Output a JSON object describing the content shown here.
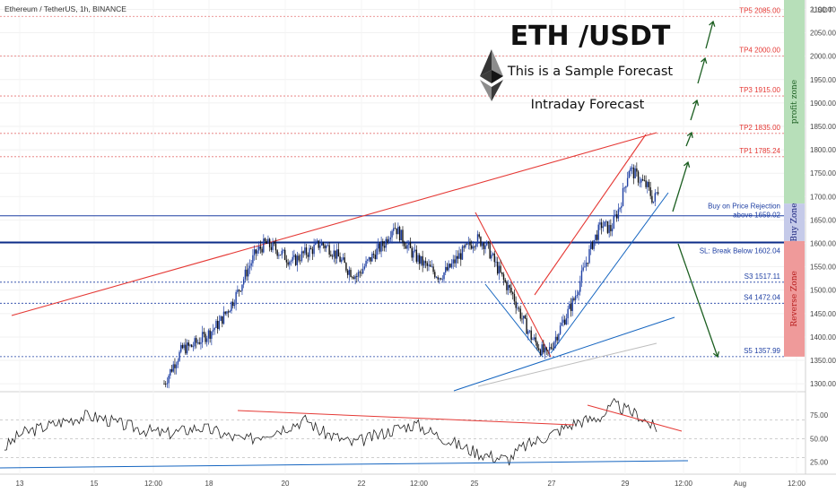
{
  "header": {
    "symbol_line": "Ethereum / TetherUS, 1h, BINANCE",
    "currency": "USDT"
  },
  "overlay_text": {
    "title": "ETH /USDT",
    "line1": "This is a Sample Forecast",
    "line2": "Intraday Forecast"
  },
  "zones": {
    "profit": {
      "label": "profit zone",
      "color": "#b7dfb9",
      "text_color": "#1b5e20"
    },
    "buy": {
      "label": "Buy Zone",
      "color": "#c5cae9",
      "text_color": "#1a237e"
    },
    "reverse": {
      "label": "Reverse Zone",
      "color": "#ef9a9a",
      "text_color": "#b71c1c"
    }
  },
  "colors": {
    "up_candle": "#1e3fa3",
    "down_candle": "#111111",
    "target_line": "#e53935",
    "support_line": "#1565c0",
    "forecast_arrow": "#1b5e20",
    "rsi_line": "#222222"
  },
  "chart_data": {
    "type": "candlestick",
    "title": "ETH /USDT",
    "y_axis": {
      "ylim": [
        1285,
        2120
      ],
      "unit": "USDT",
      "ticks": [
        "2100.00",
        "2050.00",
        "2000.00",
        "1950.00",
        "1900.00",
        "1850.00",
        "1800.00",
        "1750.00",
        "1700.00",
        "1650.00",
        "1600.00",
        "1550.00",
        "1500.00",
        "1450.00",
        "1400.00",
        "1350.00",
        "1300.00"
      ]
    },
    "x_axis": {
      "ticks": [
        "13",
        "15",
        "12:00",
        "18",
        "20",
        "22",
        "12:00",
        "25",
        "27",
        "29",
        "12:00",
        "Aug",
        "12:00"
      ]
    },
    "levels": [
      {
        "label": "TP5 2085.00",
        "value": 2085.0,
        "kind": "target"
      },
      {
        "label": "TP4 2000.00",
        "value": 2000.0,
        "kind": "target"
      },
      {
        "label": "TP3 1915.00",
        "value": 1915.0,
        "kind": "target"
      },
      {
        "label": "TP2 1835.00",
        "value": 1835.0,
        "kind": "target"
      },
      {
        "label": "TP1 1785.24",
        "value": 1785.24,
        "kind": "target"
      },
      {
        "label": "Buy on Price Rejection",
        "label2": "above 1659.02",
        "value": 1659.02,
        "kind": "buy"
      },
      {
        "label": "SL: Break Below 1602.04",
        "value": 1602.04,
        "kind": "stop"
      },
      {
        "label": "S3 1517.11",
        "value": 1517.11,
        "kind": "support"
      },
      {
        "label": "S4 1472.04",
        "value": 1472.04,
        "kind": "support"
      },
      {
        "label": "S5 1357.99",
        "value": 1357.99,
        "kind": "support"
      }
    ],
    "price_anchors": [
      [
        0,
        1300
      ],
      [
        6,
        1340
      ],
      [
        12,
        1375
      ],
      [
        18,
        1380
      ],
      [
        24,
        1395
      ],
      [
        30,
        1410
      ],
      [
        36,
        1430
      ],
      [
        42,
        1460
      ],
      [
        48,
        1495
      ],
      [
        54,
        1540
      ],
      [
        60,
        1580
      ],
      [
        66,
        1600
      ],
      [
        72,
        1590
      ],
      [
        78,
        1575
      ],
      [
        84,
        1560
      ],
      [
        90,
        1575
      ],
      [
        96,
        1585
      ],
      [
        102,
        1600
      ],
      [
        108,
        1590
      ],
      [
        114,
        1570
      ],
      [
        120,
        1545
      ],
      [
        126,
        1530
      ],
      [
        132,
        1555
      ],
      [
        138,
        1580
      ],
      [
        144,
        1600
      ],
      [
        150,
        1640
      ],
      [
        156,
        1610
      ],
      [
        162,
        1580
      ],
      [
        168,
        1560
      ],
      [
        174,
        1545
      ],
      [
        180,
        1530
      ],
      [
        186,
        1545
      ],
      [
        192,
        1570
      ],
      [
        198,
        1590
      ],
      [
        204,
        1610
      ],
      [
        210,
        1600
      ],
      [
        216,
        1560
      ],
      [
        222,
        1520
      ],
      [
        228,
        1490
      ],
      [
        234,
        1440
      ],
      [
        240,
        1400
      ],
      [
        246,
        1375
      ],
      [
        250,
        1360
      ],
      [
        256,
        1400
      ],
      [
        262,
        1440
      ],
      [
        268,
        1480
      ],
      [
        274,
        1540
      ],
      [
        280,
        1600
      ],
      [
        286,
        1640
      ],
      [
        292,
        1630
      ],
      [
        298,
        1680
      ],
      [
        304,
        1760
      ],
      [
        310,
        1740
      ],
      [
        316,
        1720
      ],
      [
        320,
        1690
      ],
      [
        323,
        1715
      ]
    ],
    "rsi": {
      "ylim": [
        15,
        95
      ],
      "ticks": [
        "75.00",
        "50.00",
        "25.00"
      ],
      "guides": [
        70,
        50,
        30
      ],
      "anchors": [
        [
          0,
          40
        ],
        [
          8,
          55
        ],
        [
          16,
          60
        ],
        [
          24,
          65
        ],
        [
          32,
          70
        ],
        [
          40,
          74
        ],
        [
          48,
          72
        ],
        [
          56,
          66
        ],
        [
          64,
          62
        ],
        [
          72,
          58
        ],
        [
          80,
          55
        ],
        [
          88,
          58
        ],
        [
          96,
          62
        ],
        [
          104,
          58
        ],
        [
          112,
          52
        ],
        [
          120,
          48
        ],
        [
          128,
          55
        ],
        [
          136,
          60
        ],
        [
          144,
          66
        ],
        [
          150,
          70
        ],
        [
          156,
          58
        ],
        [
          164,
          52
        ],
        [
          172,
          45
        ],
        [
          180,
          50
        ],
        [
          188,
          56
        ],
        [
          196,
          62
        ],
        [
          204,
          65
        ],
        [
          212,
          56
        ],
        [
          220,
          48
        ],
        [
          228,
          40
        ],
        [
          236,
          34
        ],
        [
          244,
          30
        ],
        [
          250,
          28
        ],
        [
          256,
          40
        ],
        [
          264,
          48
        ],
        [
          272,
          56
        ],
        [
          278,
          62
        ],
        [
          284,
          68
        ],
        [
          290,
          70
        ],
        [
          296,
          74
        ],
        [
          302,
          86
        ],
        [
          308,
          80
        ],
        [
          314,
          75
        ],
        [
          320,
          65
        ],
        [
          323,
          58
        ]
      ]
    }
  }
}
